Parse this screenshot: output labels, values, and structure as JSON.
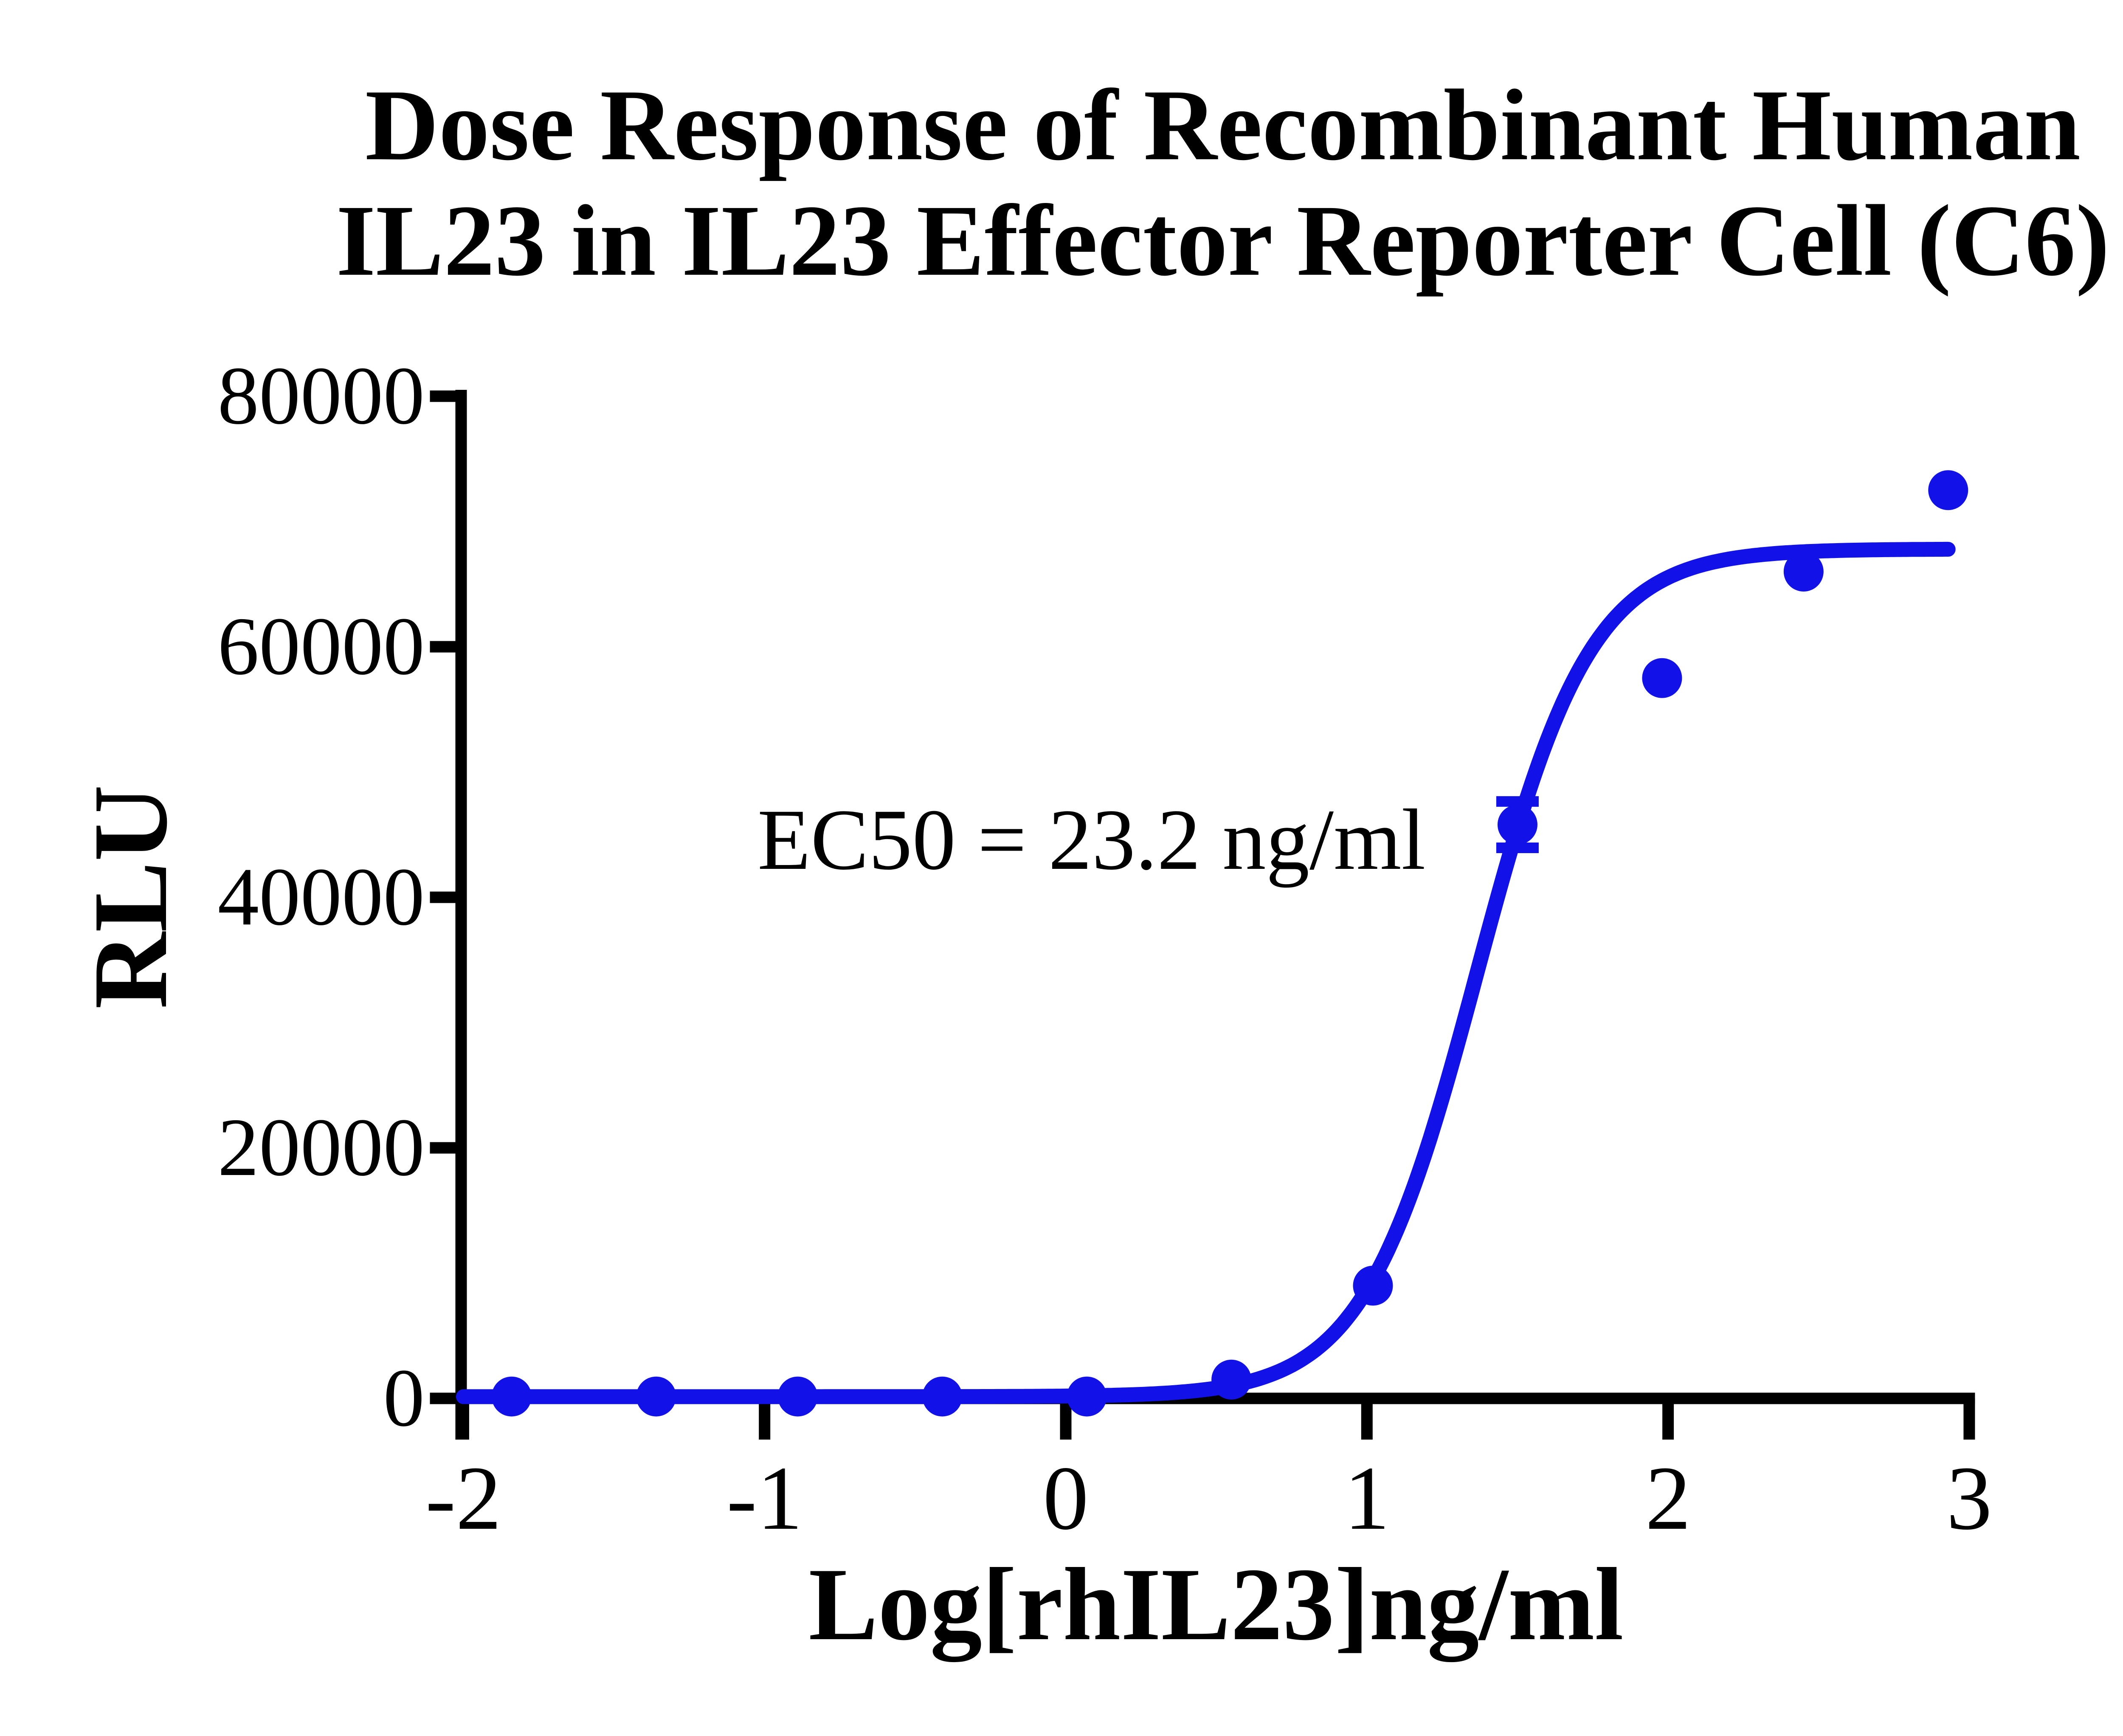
{
  "chart_data": {
    "type": "scatter",
    "title_line1": "Dose Response of Recombinant Human",
    "title_line2": "IL23 in IL23 Effector Reporter Cell (C6)",
    "xlabel": "Log[rhIL23]ng/ml",
    "ylabel": "RLU",
    "annotation": "EC50 = 23.2 ng/ml",
    "ec50_ng_ml": 23.2,
    "xlim": [
      -2,
      3
    ],
    "ylim": [
      0,
      80000
    ],
    "x_ticks": [
      -2,
      -1,
      0,
      1,
      2,
      3
    ],
    "y_ticks": [
      0,
      20000,
      40000,
      60000,
      80000
    ],
    "grid": false,
    "legend": null,
    "series": [
      {
        "name": "rhIL23",
        "color": "#1212E8",
        "marker": "circle",
        "x": [
          -1.84,
          -1.36,
          -0.89,
          -0.41,
          0.07,
          0.55,
          1.02,
          1.5,
          1.98,
          2.45,
          2.93
        ],
        "y": [
          150,
          150,
          150,
          150,
          150,
          1500,
          9000,
          45800,
          57500,
          66000,
          72500
        ],
        "y_err": [
          null,
          null,
          null,
          null,
          null,
          null,
          null,
          1850,
          null,
          null,
          null
        ]
      }
    ],
    "fit_curve": {
      "model": "4PL-sigmoid",
      "bottom": 140,
      "top": 67800,
      "log_ec50": 1.3655,
      "hill_slope": 2.3,
      "x_range": [
        -2,
        2.93
      ],
      "color": "#1212E8"
    },
    "axis_color": "#000000"
  }
}
